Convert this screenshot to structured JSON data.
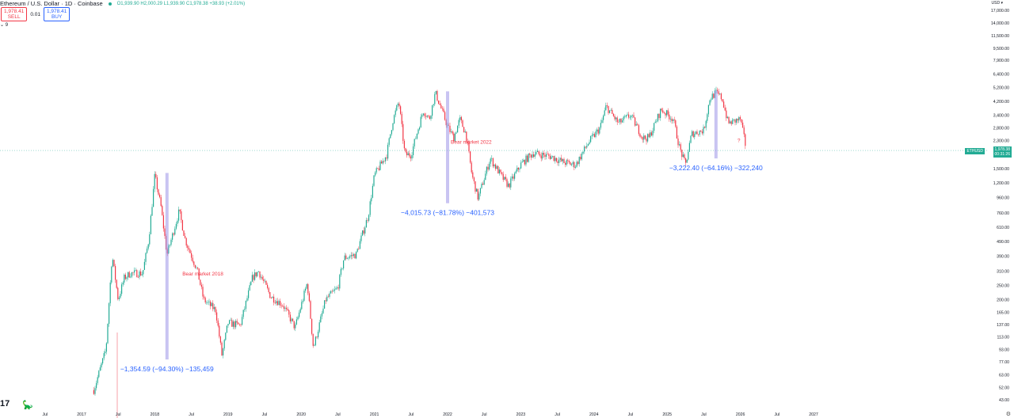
{
  "header": {
    "title": "Ethereum / U.S. Dollar · 1D · Coinbase",
    "ohlc": "O1,939.90 H2,000.29 L1,939.90 C1,978.38 +38.93 (+2.01%)",
    "sell_price": "1,978.41",
    "sell_label": "SELL",
    "spread": "0.01",
    "buy_price": "1,978.41",
    "buy_label": "BUY",
    "indicator_count": "9"
  },
  "price_axis": {
    "currency": "USD",
    "symbol_tag": "ETHUSD",
    "last_price": "1,978.38",
    "countdown": "00:31:26"
  },
  "colors": {
    "up": "#22ab94",
    "down": "#f23645",
    "range_bar": "#9c94e8",
    "label_blue": "#2962ff",
    "label_red": "#f23645"
  },
  "chart_data": {
    "type": "candlestick",
    "scale": "log",
    "ylim": [
      40,
      18000
    ],
    "xlim": [
      "2016-06",
      "2027-09"
    ],
    "y_ticks": [
      "17,000.00",
      "14,000.00",
      "11,500.00",
      "9,500.00",
      "7,900.00",
      "6,400.00",
      "5,200.00",
      "4,200.00",
      "3,400.00",
      "2,800.00",
      "2,300.00",
      "1,500.00",
      "1,200.00",
      "960.00",
      "760.00",
      "610.00",
      "490.00",
      "390.00",
      "310.00",
      "250.00",
      "200.00",
      "165.00",
      "137.00",
      "113.00",
      "93.00",
      "77.00",
      "63.00",
      "52.00",
      "43.00"
    ],
    "x_ticks": [
      [
        "2016-07",
        "Jul"
      ],
      [
        "2017-01",
        "2017"
      ],
      [
        "2017-07",
        "Jul"
      ],
      [
        "2018-01",
        "2018"
      ],
      [
        "2018-07",
        "Jul"
      ],
      [
        "2019-01",
        "2019"
      ],
      [
        "2019-07",
        "Jul"
      ],
      [
        "2020-01",
        "2020"
      ],
      [
        "2020-07",
        "Jul"
      ],
      [
        "2021-01",
        "2021"
      ],
      [
        "2021-07",
        "Jul"
      ],
      [
        "2022-01",
        "2022"
      ],
      [
        "2022-07",
        "Jul"
      ],
      [
        "2023-01",
        "2023"
      ],
      [
        "2023-07",
        "Jul"
      ],
      [
        "2024-01",
        "2024"
      ],
      [
        "2024-07",
        "Jul"
      ],
      [
        "2025-01",
        "2025"
      ],
      [
        "2025-07",
        "Jul"
      ],
      [
        "2026-01",
        "2026"
      ],
      [
        "2026-07",
        "Jul"
      ],
      [
        "2027-01",
        "2027"
      ]
    ],
    "last_price": 1978.38,
    "series": [
      [
        "2017-03",
        50
      ],
      [
        "2017-05",
        93
      ],
      [
        "2017-06",
        400
      ],
      [
        "2017-07",
        200
      ],
      [
        "2017-08",
        280
      ],
      [
        "2017-09",
        300
      ],
      [
        "2017-11",
        300
      ],
      [
        "2017-12",
        500
      ],
      [
        "2018-01",
        1350
      ],
      [
        "2018-02",
        840
      ],
      [
        "2018-03",
        400
      ],
      [
        "2018-05",
        780
      ],
      [
        "2018-06",
        500
      ],
      [
        "2018-08",
        310
      ],
      [
        "2018-09",
        200
      ],
      [
        "2018-11",
        170
      ],
      [
        "2018-12",
        85
      ],
      [
        "2019-01",
        140
      ],
      [
        "2019-03",
        135
      ],
      [
        "2019-05",
        280
      ],
      [
        "2019-06",
        310
      ],
      [
        "2019-08",
        210
      ],
      [
        "2019-10",
        185
      ],
      [
        "2019-12",
        130
      ],
      [
        "2020-02",
        260
      ],
      [
        "2020-03",
        95
      ],
      [
        "2020-05",
        200
      ],
      [
        "2020-07",
        240
      ],
      [
        "2020-08",
        380
      ],
      [
        "2020-10",
        400
      ],
      [
        "2020-12",
        730
      ],
      [
        "2021-01",
        1350
      ],
      [
        "2021-03",
        1850
      ],
      [
        "2021-04",
        3100
      ],
      [
        "2021-05",
        4200
      ],
      [
        "2021-06",
        1850
      ],
      [
        "2021-07",
        1850
      ],
      [
        "2021-09",
        3650
      ],
      [
        "2021-10",
        3200
      ],
      [
        "2021-11",
        4800
      ],
      [
        "2022-01",
        2860
      ],
      [
        "2022-02",
        2400
      ],
      [
        "2022-03",
        3200
      ],
      [
        "2022-04",
        2550
      ],
      [
        "2022-05",
        1350
      ],
      [
        "2022-06",
        950
      ],
      [
        "2022-08",
        1750
      ],
      [
        "2022-10",
        1300
      ],
      [
        "2022-11",
        1150
      ],
      [
        "2023-01",
        1600
      ],
      [
        "2023-03",
        1900
      ],
      [
        "2023-06",
        1800
      ],
      [
        "2023-08",
        1650
      ],
      [
        "2023-10",
        1580
      ],
      [
        "2023-12",
        2200
      ],
      [
        "2024-02",
        2800
      ],
      [
        "2024-03",
        3900
      ],
      [
        "2024-05",
        3000
      ],
      [
        "2024-07",
        3400
      ],
      [
        "2024-09",
        2400
      ],
      [
        "2024-10",
        2400
      ],
      [
        "2024-12",
        3700
      ],
      [
        "2025-02",
        3200
      ],
      [
        "2025-03",
        2080
      ],
      [
        "2025-04",
        1580
      ],
      [
        "2025-05",
        2550
      ],
      [
        "2025-07",
        2700
      ],
      [
        "2025-08",
        4400
      ],
      [
        "2025-09",
        4800
      ],
      [
        "2025-10",
        4400
      ],
      [
        "2025-11",
        3000
      ],
      [
        "2026-01",
        3200
      ],
      [
        "2026-02",
        1978.38
      ]
    ],
    "annotations": [
      {
        "type": "range",
        "date": "2018-03",
        "from": 1400,
        "to": 80,
        "label": "−1,354.59 (−94.30%) −135,459"
      },
      {
        "type": "text",
        "date": "2018-05",
        "price": 290,
        "label": "Bear market 2018"
      },
      {
        "type": "range",
        "date": "2022-01",
        "from": 4900,
        "to": 880,
        "label": "−4,015.73 (−81.78%) −401,573"
      },
      {
        "type": "text",
        "date": "2022-01",
        "price": 2200,
        "label": "Bear market 2022"
      },
      {
        "type": "range",
        "date": "2025-09",
        "from": 4950,
        "to": 1750,
        "label": "−3,222.40 (−64.16%) −322,240"
      },
      {
        "type": "text",
        "date": "2025-12",
        "price": 2250,
        "label": "?"
      }
    ]
  }
}
